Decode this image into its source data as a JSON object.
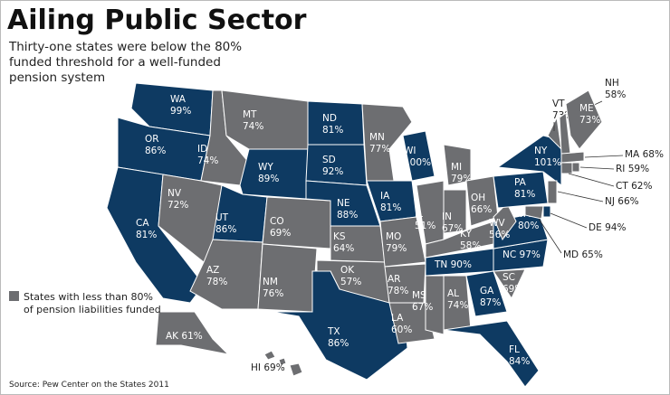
{
  "header": {
    "title": "Ailing Public Sector",
    "subtitle": [
      "Thirty-one states were below the 80%",
      "funded threshold for a well-funded",
      "pension system"
    ]
  },
  "legend": {
    "lines": [
      "States with less than 80%",
      "of pension liabilities funded"
    ],
    "color": "#6d6e71"
  },
  "source": "Source: Pew Center on the States 2011",
  "states": [
    {
      "abbr": "WA",
      "value": "99%",
      "color": "#0e3a62"
    },
    {
      "abbr": "OR",
      "value": "86%",
      "color": "#0e3a62"
    },
    {
      "abbr": "CA",
      "value": "81%",
      "color": "#0e3a62"
    },
    {
      "abbr": "ID",
      "value": "74%",
      "color": "#6d6e71"
    },
    {
      "abbr": "NV",
      "value": "72%",
      "color": "#6d6e71"
    },
    {
      "abbr": "MT",
      "value": "74%",
      "color": "#6d6e71"
    },
    {
      "abbr": "WY",
      "value": "89%",
      "color": "#0e3a62"
    },
    {
      "abbr": "UT",
      "value": "86%",
      "color": "#0e3a62"
    },
    {
      "abbr": "AZ",
      "value": "78%",
      "color": "#6d6e71"
    },
    {
      "abbr": "CO",
      "value": "69%",
      "color": "#6d6e71"
    },
    {
      "abbr": "NM",
      "value": "76%",
      "color": "#6d6e71"
    },
    {
      "abbr": "ND",
      "value": "81%",
      "color": "#0e3a62"
    },
    {
      "abbr": "SD",
      "value": "92%",
      "color": "#0e3a62"
    },
    {
      "abbr": "NE",
      "value": "88%",
      "color": "#0e3a62"
    },
    {
      "abbr": "KS",
      "value": "64%",
      "color": "#6d6e71"
    },
    {
      "abbr": "OK",
      "value": "57%",
      "color": "#6d6e71"
    },
    {
      "abbr": "TX",
      "value": "86%",
      "color": "#0e3a62"
    },
    {
      "abbr": "MN",
      "value": "77%",
      "color": "#6d6e71"
    },
    {
      "abbr": "IA",
      "value": "81%",
      "color": "#0e3a62"
    },
    {
      "abbr": "MO",
      "value": "79%",
      "color": "#6d6e71"
    },
    {
      "abbr": "AR",
      "value": "78%",
      "color": "#6d6e71"
    },
    {
      "abbr": "LA",
      "value": "60%",
      "color": "#6d6e71"
    },
    {
      "abbr": "WI",
      "value": "100%",
      "color": "#0e3a62"
    },
    {
      "abbr": "IL",
      "value": "51%",
      "color": "#6d6e71"
    },
    {
      "abbr": "MI",
      "value": "79%",
      "color": "#6d6e71"
    },
    {
      "abbr": "IN",
      "value": "67%",
      "color": "#6d6e71"
    },
    {
      "abbr": "OH",
      "value": "66%",
      "color": "#6d6e71"
    },
    {
      "abbr": "KY",
      "value": "58%",
      "color": "#6d6e71"
    },
    {
      "abbr": "TN",
      "value": "90%",
      "color": "#0e3a62"
    },
    {
      "abbr": "MS",
      "value": "67%",
      "color": "#6d6e71"
    },
    {
      "abbr": "AL",
      "value": "74%",
      "color": "#6d6e71"
    },
    {
      "abbr": "GA",
      "value": "87%",
      "color": "#0e3a62"
    },
    {
      "abbr": "FL",
      "value": "84%",
      "color": "#0e3a62"
    },
    {
      "abbr": "SC",
      "value": "69%",
      "color": "#6d6e71"
    },
    {
      "abbr": "NC",
      "value": "97%",
      "color": "#0e3a62"
    },
    {
      "abbr": "VA",
      "value": "80%",
      "color": "#0e3a62"
    },
    {
      "abbr": "WV",
      "value": "56%",
      "color": "#6d6e71"
    },
    {
      "abbr": "PA",
      "value": "81%",
      "color": "#0e3a62"
    },
    {
      "abbr": "NY",
      "value": "101%",
      "color": "#0e3a62"
    },
    {
      "abbr": "VT",
      "value": "73%",
      "color": "#6d6e71"
    },
    {
      "abbr": "NH",
      "value": "58%",
      "color": "#6d6e71"
    },
    {
      "abbr": "ME",
      "value": "73%",
      "color": "#6d6e71"
    },
    {
      "abbr": "MA",
      "value": "68%",
      "color": "#6d6e71"
    },
    {
      "abbr": "RI",
      "value": "59%",
      "color": "#6d6e71"
    },
    {
      "abbr": "CT",
      "value": "62%",
      "color": "#6d6e71"
    },
    {
      "abbr": "NJ",
      "value": "66%",
      "color": "#6d6e71"
    },
    {
      "abbr": "DE",
      "value": "94%",
      "color": "#0e3a62"
    },
    {
      "abbr": "MD",
      "value": "65%",
      "color": "#6d6e71"
    },
    {
      "abbr": "AK",
      "value": "61%",
      "color": "#6d6e71"
    },
    {
      "abbr": "HI",
      "value": "69%",
      "color": "#6d6e71"
    }
  ]
}
